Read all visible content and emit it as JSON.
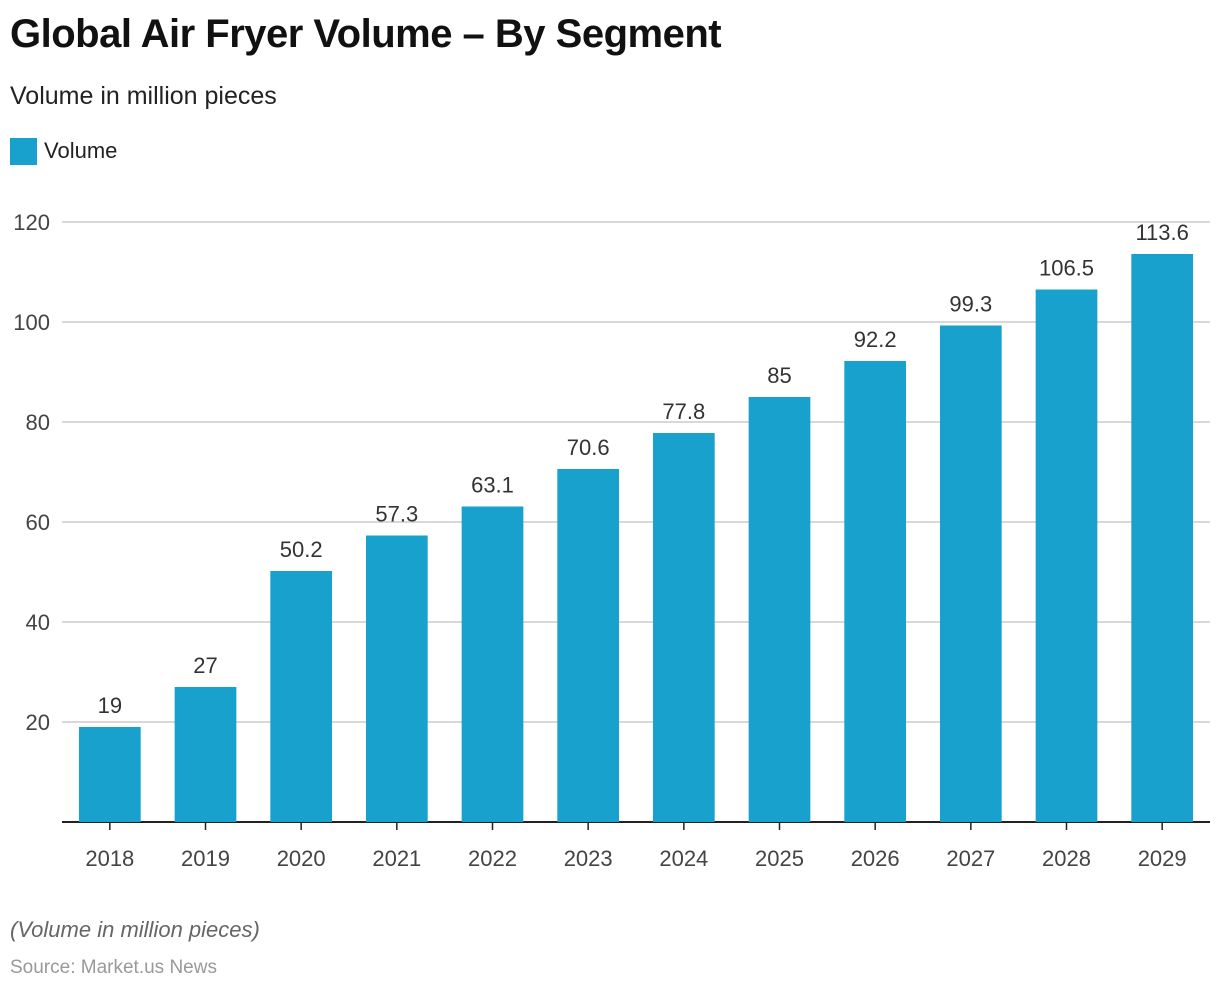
{
  "header": {
    "title": "Global Air Fryer Volume – By Segment",
    "subtitle": "Volume in million pieces"
  },
  "footer": {
    "note": "(Volume in million pieces)",
    "source": "Source: Market.us News"
  },
  "colors": {
    "bar": "#19a1cd",
    "grid": "#cccccc",
    "axis": "#222222",
    "tick_text": "#444444",
    "label_text": "#333333"
  },
  "chart_data": {
    "type": "bar",
    "title": "Global Air Fryer Volume – By Segment",
    "subtitle": "Volume in million pieces",
    "xlabel": "",
    "ylabel": "",
    "categories": [
      "2018",
      "2019",
      "2020",
      "2021",
      "2022",
      "2023",
      "2024",
      "2025",
      "2026",
      "2027",
      "2028",
      "2029"
    ],
    "series": [
      {
        "name": "Volume",
        "values": [
          19,
          27,
          50.2,
          57.3,
          63.1,
          70.6,
          77.8,
          85,
          92.2,
          99.3,
          106.5,
          113.6
        ],
        "labels": [
          "19",
          "27",
          "50.2",
          "57.3",
          "63.1",
          "70.6",
          "77.8",
          "85",
          "92.2",
          "99.3",
          "106.5",
          "113.6"
        ]
      }
    ],
    "ylim": [
      0,
      120
    ],
    "yticks": [
      20,
      40,
      60,
      80,
      100,
      120
    ],
    "grid": true,
    "legend": "top-left",
    "data_labels": true
  }
}
